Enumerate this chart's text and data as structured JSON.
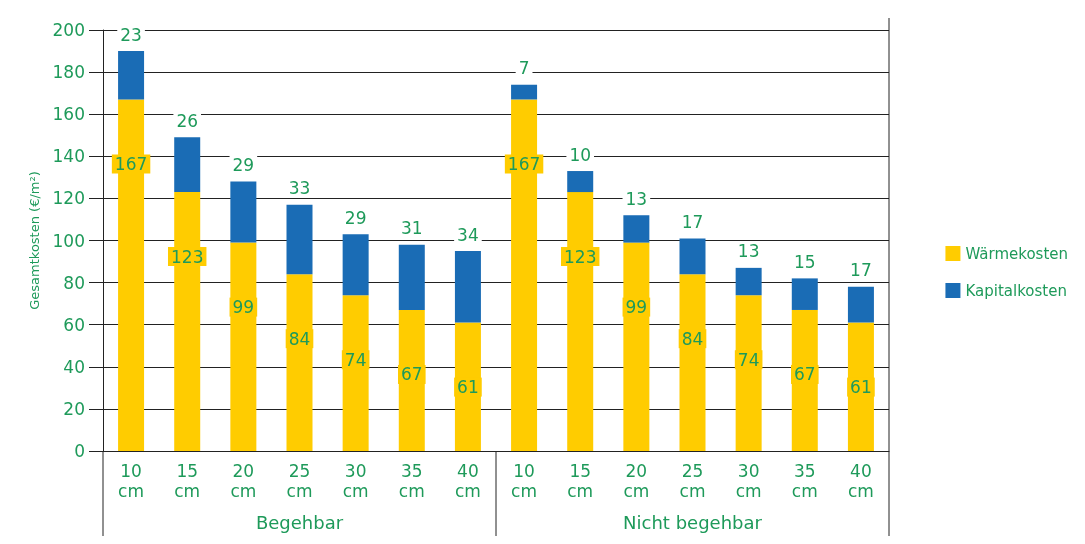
{
  "chart_data": {
    "type": "bar",
    "stacked": true,
    "ylabel": "Gesamtkosten (€/m²)",
    "categories": [
      "10 cm",
      "15 cm",
      "20 cm",
      "25 cm",
      "30 cm",
      "35 cm",
      "40 cm",
      "10 cm",
      "15 cm",
      "20 cm",
      "25 cm",
      "30 cm",
      "35 cm",
      "40 cm"
    ],
    "series": [
      {
        "name": "Wärmekosten",
        "color": "#ffcc00",
        "values": [
          167,
          123,
          99,
          84,
          74,
          67,
          61,
          167,
          123,
          99,
          84,
          74,
          67,
          61
        ]
      },
      {
        "name": "Kapitalkosten",
        "color": "#1a6cb5",
        "values": [
          23,
          26,
          29,
          33,
          29,
          31,
          34,
          7,
          10,
          13,
          17,
          13,
          15,
          17
        ]
      }
    ],
    "ylim": [
      0,
      200
    ],
    "yticks": [
      0,
      20,
      40,
      60,
      80,
      100,
      120,
      140,
      160,
      180,
      200
    ],
    "grid": "y",
    "legend": "right",
    "data_labels": true,
    "annotations": [
      "Begehbar",
      "Nicht begehbar"
    ]
  }
}
